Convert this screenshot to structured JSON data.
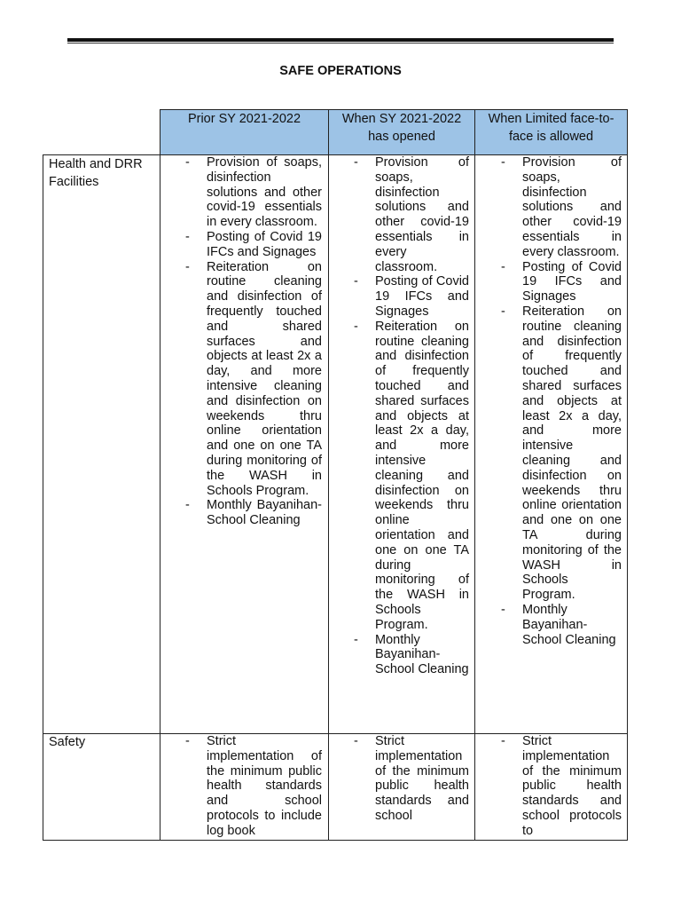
{
  "document": {
    "title": "SAFE OPERATIONS",
    "table": {
      "headers": [
        "Prior SY 2021-2022",
        "When SY 2021-2022 has opened",
        "When Limited face-to-face is allowed"
      ],
      "rows": [
        {
          "label": "Health and DRR Facilities",
          "cells": [
            [
              "Provision of soaps, disinfection solutions and other covid-19 essentials in every classroom.",
              "Posting of Covid 19 IFCs and Signages",
              "Reiteration on routine cleaning and disinfection of frequently touched and shared surfaces and objects at least 2x a day, and more intensive cleaning and disinfection on weekends thru online orientation and one on one TA during monitoring of the WASH in Schools Program.",
              "Monthly Bayanihan- School Cleaning"
            ],
            [
              "Provision of soaps, disinfection solutions and other covid-19 essentials in every classroom.",
              "Posting of Covid 19 IFCs and Signages",
              "Reiteration on routine cleaning and disinfection of frequently touched and shared surfaces and objects at least 2x a day, and more intensive cleaning and disinfection on weekends thru online orientation and one on one TA during monitoring of the WASH in Schools Program.",
              "Monthly Bayanihan- School Cleaning"
            ],
            [
              "Provision of soaps, disinfection solutions and other covid-19 essentials in every classroom.",
              "Posting of Covid 19 IFCs and Signages",
              "Reiteration on routine cleaning and disinfection of frequently touched and shared surfaces and objects at least 2x a day, and more intensive cleaning and disinfection on weekends thru online orientation and one on one TA during monitoring of the WASH in Schools Program.",
              "Monthly Bayanihan- School Cleaning"
            ]
          ]
        },
        {
          "label": "Safety",
          "cells": [
            [
              "Strict implementation of the minimum public health standards and school protocols to include log book"
            ],
            [
              "Strict implementation of the minimum public health standards and school"
            ],
            [
              "Strict implementation of the minimum public health standards and school protocols to"
            ]
          ]
        }
      ]
    },
    "colors": {
      "header_fill": "#9dc3e6"
    }
  }
}
